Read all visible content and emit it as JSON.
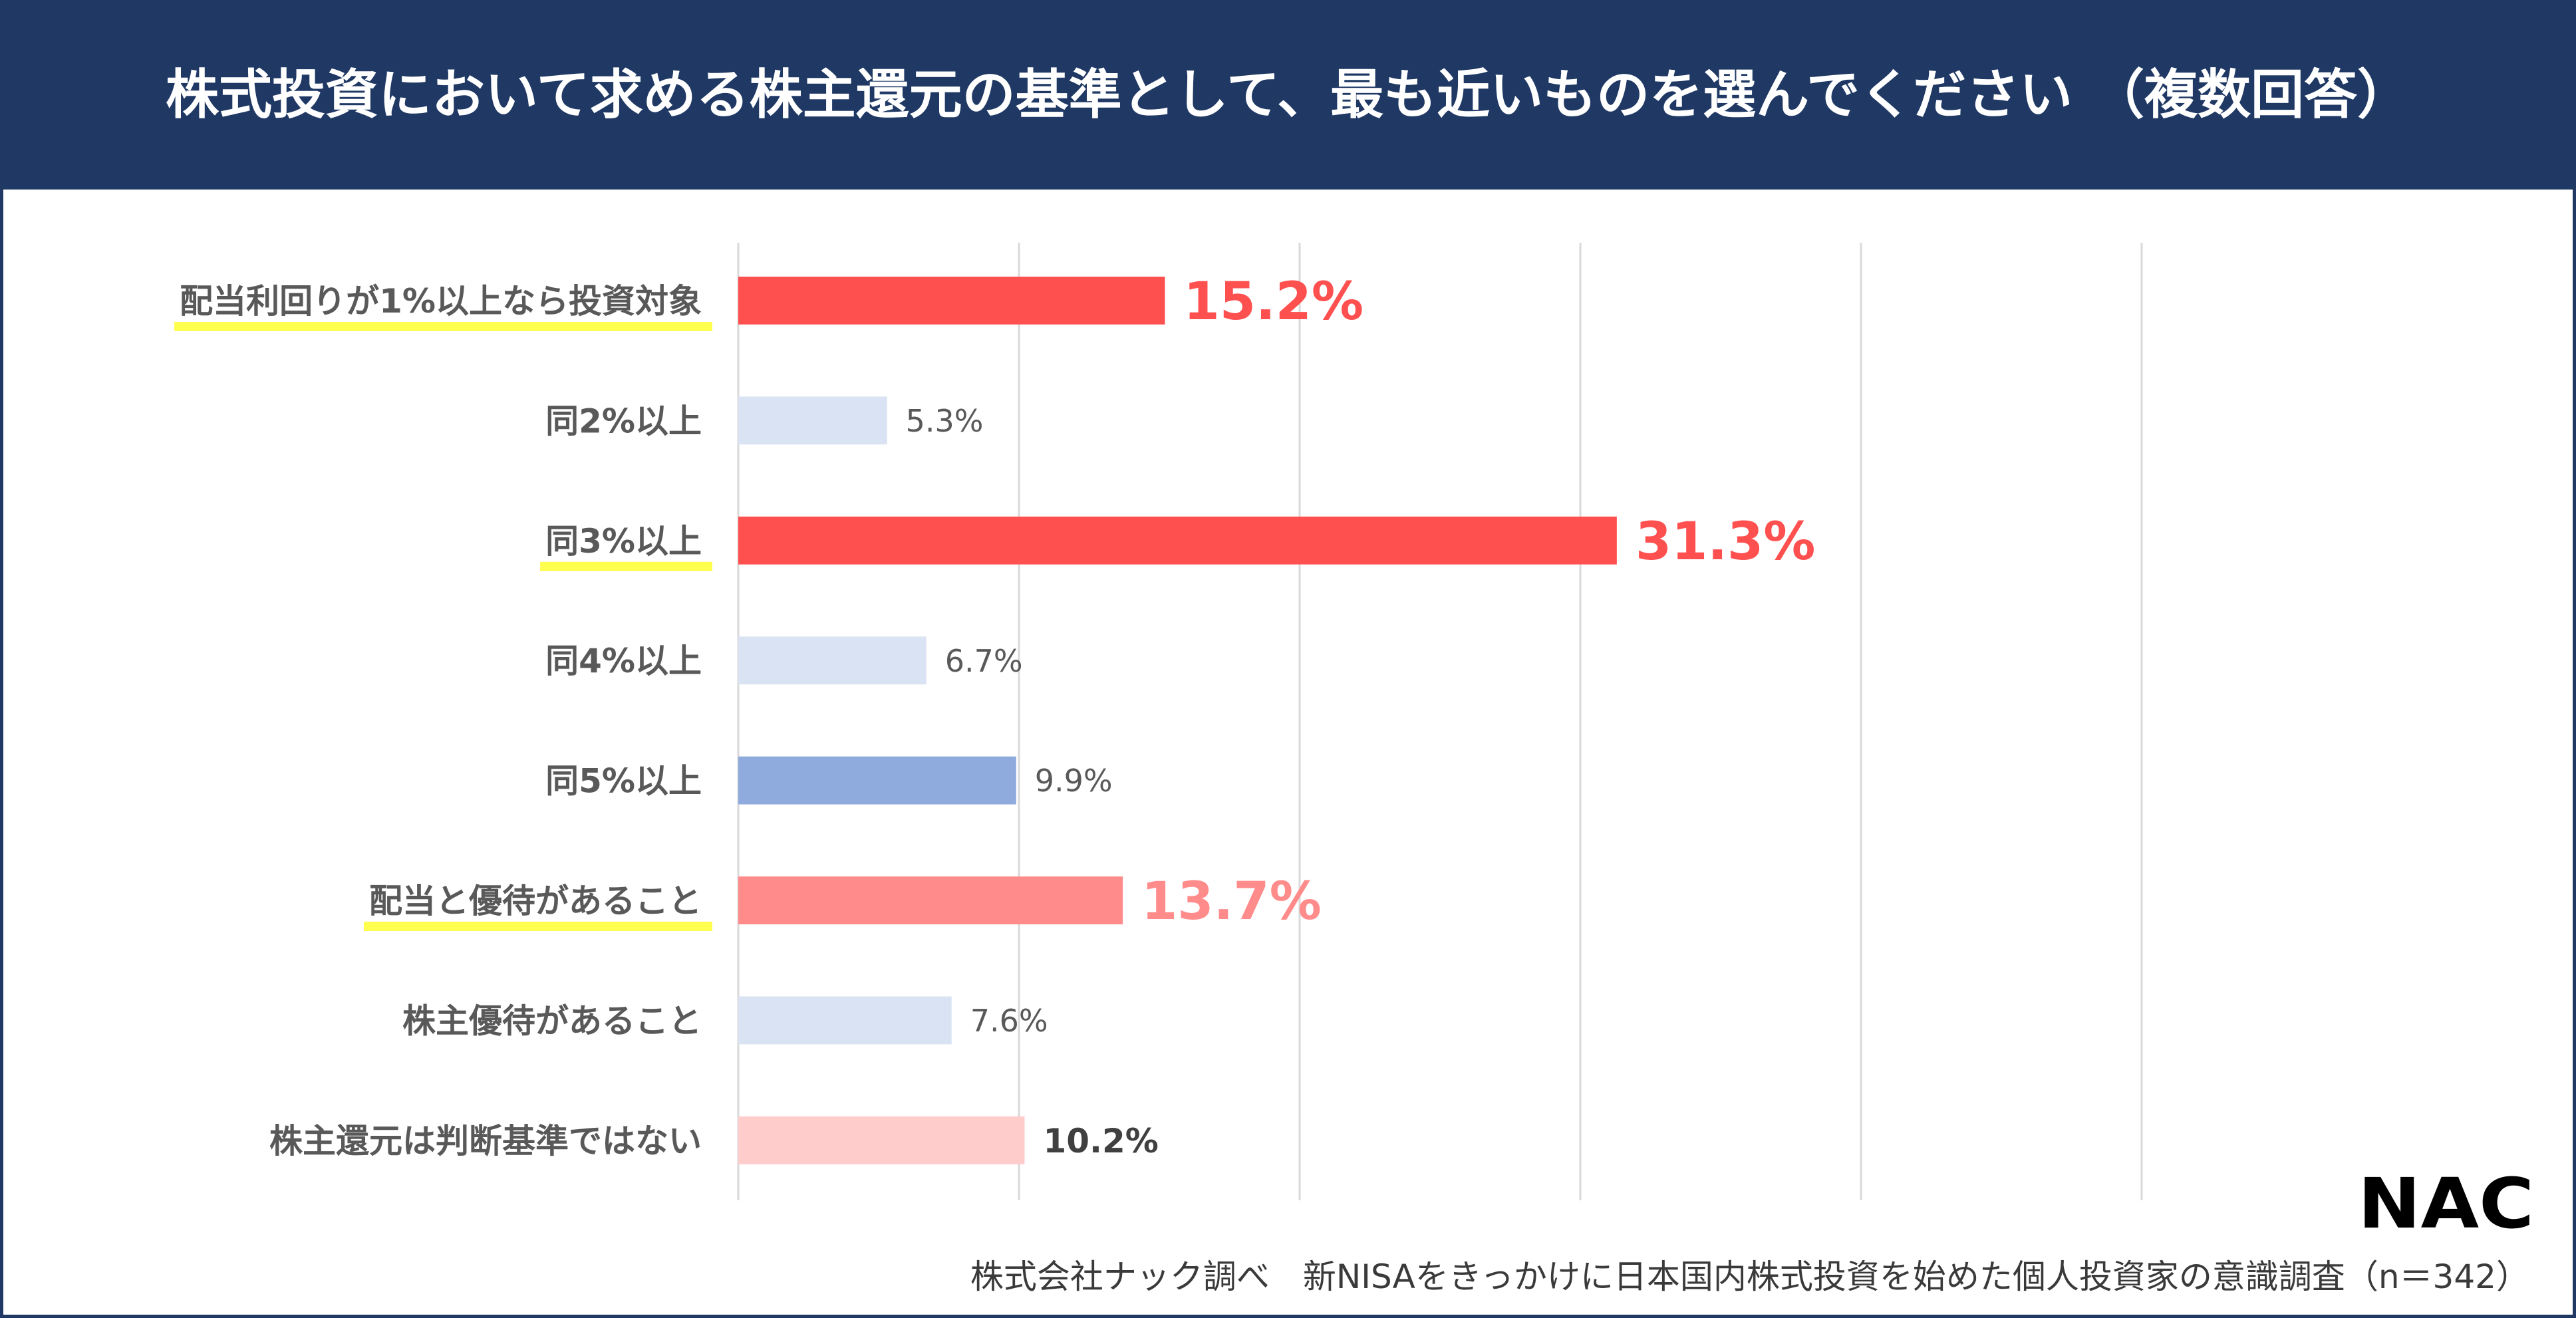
{
  "title": "株式投資において求める株主還元の基準として、最も近いものを選んでください （複数回答）",
  "footer": "株式会社ナック調べ　新NISAをきっかけに日本国内株式投資を始めた個人投資家の意識調査（n＝342）",
  "logo_text": "NAC",
  "chart_data": {
    "type": "bar",
    "orientation": "horizontal",
    "title": "株式投資において求める株主還元の基準として、最も近いものを選んでください （複数回答）",
    "xlim": [
      0,
      50
    ],
    "grid": true,
    "unit": "%",
    "categories": [
      "配当利回りが1%以上なら投資対象",
      "同2%以上",
      "同3%以上",
      "同4%以上",
      "同5%以上",
      "配当と優待があること",
      "株主優待があること",
      "株主還元は判断基準ではない"
    ],
    "values": [
      15.2,
      5.3,
      31.3,
      6.7,
      9.9,
      13.7,
      7.6,
      10.2
    ],
    "value_labels": [
      "15.2%",
      "5.3%",
      "31.3%",
      "6.7%",
      "9.9%",
      "13.7%",
      "7.6%",
      "10.2%"
    ],
    "bar_colors": [
      "#ff5050",
      "#dae3f3",
      "#ff5050",
      "#dae3f3",
      "#8faadc",
      "#ff8b8b",
      "#dae3f3",
      "#ffcccc"
    ],
    "label_colors": [
      "#ff5050",
      "#595959",
      "#ff5050",
      "#595959",
      "#595959",
      "#ff8b8b",
      "#595959",
      "#404040"
    ],
    "label_styles": [
      "large",
      "normal",
      "large",
      "normal",
      "normal",
      "large",
      "normal",
      "bold"
    ],
    "highlighted_categories": [
      true,
      false,
      true,
      false,
      false,
      true,
      false,
      false
    ],
    "highlight_color": "#ffff4d",
    "header_color": "#1f3864"
  }
}
